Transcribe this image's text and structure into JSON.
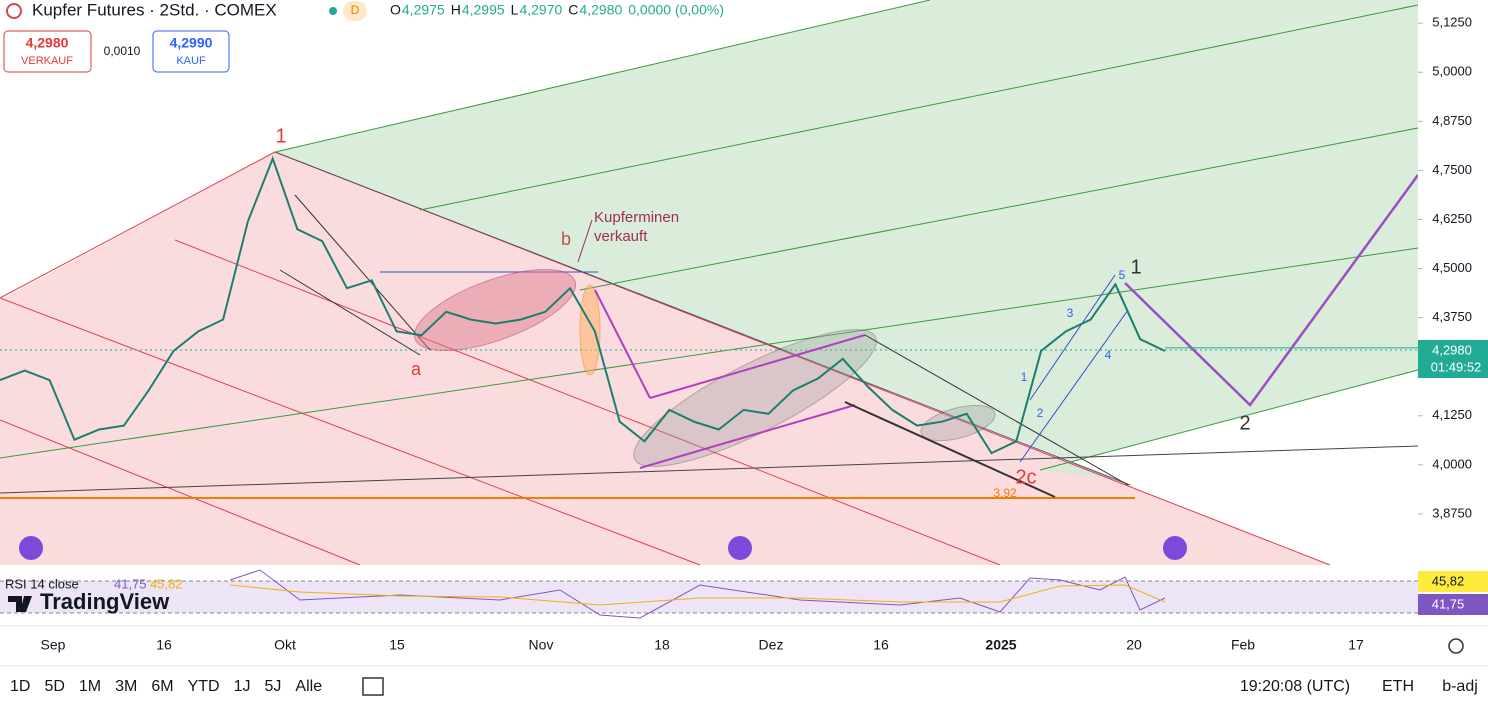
{
  "header": {
    "title": "Kupfer Futures · 2Std. · COMEX",
    "badge": "D",
    "ohlc": [
      {
        "key": "O",
        "value": "4,2975"
      },
      {
        "key": "H",
        "value": "4,2995"
      },
      {
        "key": "L",
        "value": "4,2970"
      },
      {
        "key": "C",
        "value": "4,2980"
      }
    ],
    "change": "0,0000 (0,00%)"
  },
  "quote": {
    "sell_price": "4,2980",
    "sell_label": "VERKAUF",
    "spread": "0,0010",
    "buy_price": "4,2990",
    "buy_label": "KAUF"
  },
  "chart": {
    "ylim": [
      3.745,
      5.184
    ],
    "yticks": [
      {
        "value": 5.125,
        "label": "5,1250"
      },
      {
        "value": 5.0,
        "label": "5,0000"
      },
      {
        "value": 4.875,
        "label": "4,8750"
      },
      {
        "value": 4.75,
        "label": "4,7500"
      },
      {
        "value": 4.625,
        "label": "4,6250"
      },
      {
        "value": 4.5,
        "label": "4,5000"
      },
      {
        "value": 4.375,
        "label": "4,3750"
      },
      {
        "value": 4.125,
        "label": "4,1250"
      },
      {
        "value": 4.0,
        "label": "4,0000"
      },
      {
        "value": 3.875,
        "label": "3,8750"
      }
    ],
    "price": [
      4.216,
      4.24,
      4.216,
      4.064,
      4.09,
      4.1,
      4.19,
      4.29,
      4.34,
      4.37,
      4.62,
      4.78,
      4.6,
      4.57,
      4.45,
      4.47,
      4.34,
      4.33,
      4.39,
      4.37,
      4.36,
      4.37,
      4.39,
      4.45,
      4.34,
      4.11,
      4.06,
      4.14,
      4.11,
      4.09,
      4.14,
      4.13,
      4.19,
      4.22,
      4.27,
      4.2,
      4.14,
      4.1,
      4.11,
      4.13,
      4.03,
      4.06,
      4.29,
      4.34,
      4.37,
      4.46,
      4.32,
      4.29
    ],
    "last_price": {
      "value": 4.298,
      "label": "4,2980"
    },
    "countdown": "01:49:52",
    "annotations": [
      "1",
      "a",
      "b",
      "Kupferminen",
      "verkauft",
      "2c",
      "3,92",
      "1",
      "2",
      "1",
      "2",
      "3",
      "4",
      "5"
    ],
    "x_labels": [
      "Sep",
      "16",
      "Okt",
      "15",
      "Nov",
      "18",
      "Dez",
      "16",
      "2025",
      "20",
      "Feb",
      "17"
    ]
  },
  "rsi": {
    "legend": "RSI 14 close",
    "value": "41,75",
    "ma_value": "45,82"
  },
  "logo": "TradingView",
  "toolbar": {
    "ranges": [
      "1D",
      "5D",
      "1M",
      "3M",
      "6M",
      "YTD",
      "1J",
      "5J",
      "Alle"
    ],
    "clock": "19:20:08 (UTC)",
    "session": "ETH",
    "adjust": "b-adj"
  }
}
